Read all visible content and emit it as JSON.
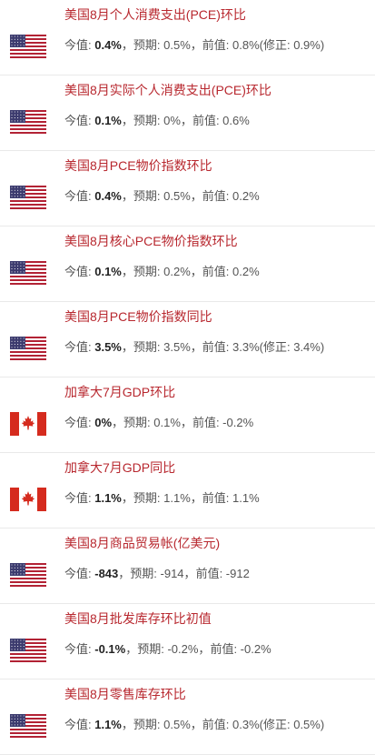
{
  "labels": {
    "actual_prefix": "今值: ",
    "forecast_prefix": "预期: ",
    "previous_prefix": "前值: ",
    "separator": "，"
  },
  "items": [
    {
      "flag": "us-flag",
      "title": "美国8月个人消费支出(PCE)环比",
      "actual": "0.4%",
      "forecast": "0.5%",
      "previous": "0.8%",
      "revised": "(修正: 0.9%)"
    },
    {
      "flag": "us-flag",
      "title": "美国8月实际个人消费支出(PCE)环比",
      "actual": "0.1%",
      "forecast": "0%",
      "previous": "0.6%",
      "revised": ""
    },
    {
      "flag": "us-flag",
      "title": "美国8月PCE物价指数环比",
      "actual": "0.4%",
      "forecast": "0.5%",
      "previous": "0.2%",
      "revised": ""
    },
    {
      "flag": "us-flag",
      "title": "美国8月核心PCE物价指数环比",
      "actual": "0.1%",
      "forecast": "0.2%",
      "previous": "0.2%",
      "revised": ""
    },
    {
      "flag": "us-flag",
      "title": "美国8月PCE物价指数同比",
      "actual": "3.5%",
      "forecast": "3.5%",
      "previous": "3.3%",
      "revised": "(修正: 3.4%)"
    },
    {
      "flag": "canada-flag",
      "title": "加拿大7月GDP环比",
      "actual": "0%",
      "forecast": "0.1%",
      "previous": "-0.2%",
      "revised": ""
    },
    {
      "flag": "canada-flag",
      "title": "加拿大7月GDP同比",
      "actual": "1.1%",
      "forecast": "1.1%",
      "previous": "1.1%",
      "revised": ""
    },
    {
      "flag": "us-flag",
      "title": "美国8月商品贸易帐(亿美元)",
      "actual": "-843",
      "forecast": "-914",
      "previous": "-912",
      "revised": ""
    },
    {
      "flag": "us-flag",
      "title": "美国8月批发库存环比初值",
      "actual": "-0.1%",
      "forecast": "-0.2%",
      "previous": "-0.2%",
      "revised": ""
    },
    {
      "flag": "us-flag",
      "title": "美国8月零售库存环比",
      "actual": "1.1%",
      "forecast": "0.5%",
      "previous": "0.3%",
      "revised": "(修正: 0.5%)"
    }
  ],
  "colors": {
    "title_red": "#b8282f",
    "us_red": "#b22234",
    "us_blue": "#3c3b6e",
    "canada_red": "#d52b1e"
  }
}
